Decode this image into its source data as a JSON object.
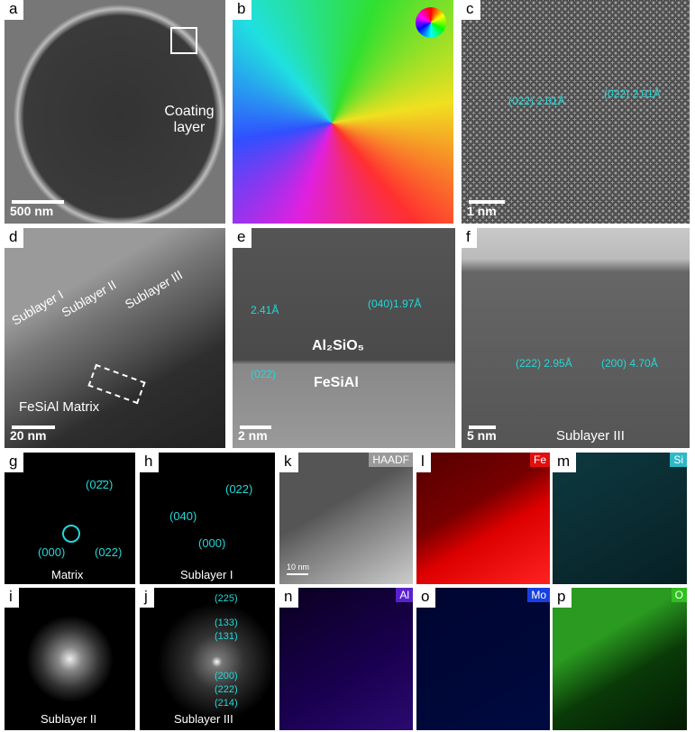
{
  "panels": {
    "a": {
      "label": "a",
      "annotation": "Coating layer",
      "scale": "500 nm"
    },
    "b": {
      "label": "b"
    },
    "c": {
      "label": "c",
      "spacing1": "(022) 2.01Å",
      "spacing2": "(0̄22) 2.01Å",
      "scale": "1 nm"
    },
    "d": {
      "label": "d",
      "sub1": "Sublayer I",
      "sub2": "Sublayer II",
      "sub3": "Sublayer III",
      "matrix": "FeSiAl Matrix",
      "scale": "20 nm"
    },
    "e": {
      "label": "e",
      "spacing1": "(022)",
      "spacing1b": "2.41Å",
      "spacing2": "(040)1.97Å",
      "phase1": "Al₂SiO₅",
      "phase2": "FeSiAl",
      "scale": "2 nm"
    },
    "f": {
      "label": "f",
      "spacing1": "(222) 2.95Å",
      "spacing2": "(200) 4.70Å",
      "caption": "Sublayer III",
      "scale": "5 nm"
    },
    "g": {
      "label": "g",
      "spot1": "(02̄2)",
      "spot2": "(000)",
      "spot3": "(022)",
      "caption": "Matrix"
    },
    "h": {
      "label": "h",
      "spot1": "(022)",
      "spot2": "(040)",
      "spot3": "(000)",
      "caption": "Sublayer I"
    },
    "i": {
      "label": "i",
      "caption": "Sublayer II"
    },
    "j": {
      "label": "j",
      "rings": [
        "(225)",
        "(133)",
        "(131)",
        "(200)",
        "(222)",
        "(214)"
      ],
      "caption": "Sublayer III"
    },
    "k": {
      "label": "k",
      "tag": "HAADF",
      "scale": "10 nm",
      "color": "#9a9a9a"
    },
    "l": {
      "label": "l",
      "tag": "Fe",
      "color": "#e01010"
    },
    "m": {
      "label": "m",
      "tag": "Si",
      "color": "#2fb8c8"
    },
    "n": {
      "label": "n",
      "tag": "Al",
      "color": "#5a20d0"
    },
    "o": {
      "label": "o",
      "tag": "Mo",
      "color": "#1840e0"
    },
    "p": {
      "label": "p",
      "tag": "O",
      "color": "#30c020"
    }
  }
}
